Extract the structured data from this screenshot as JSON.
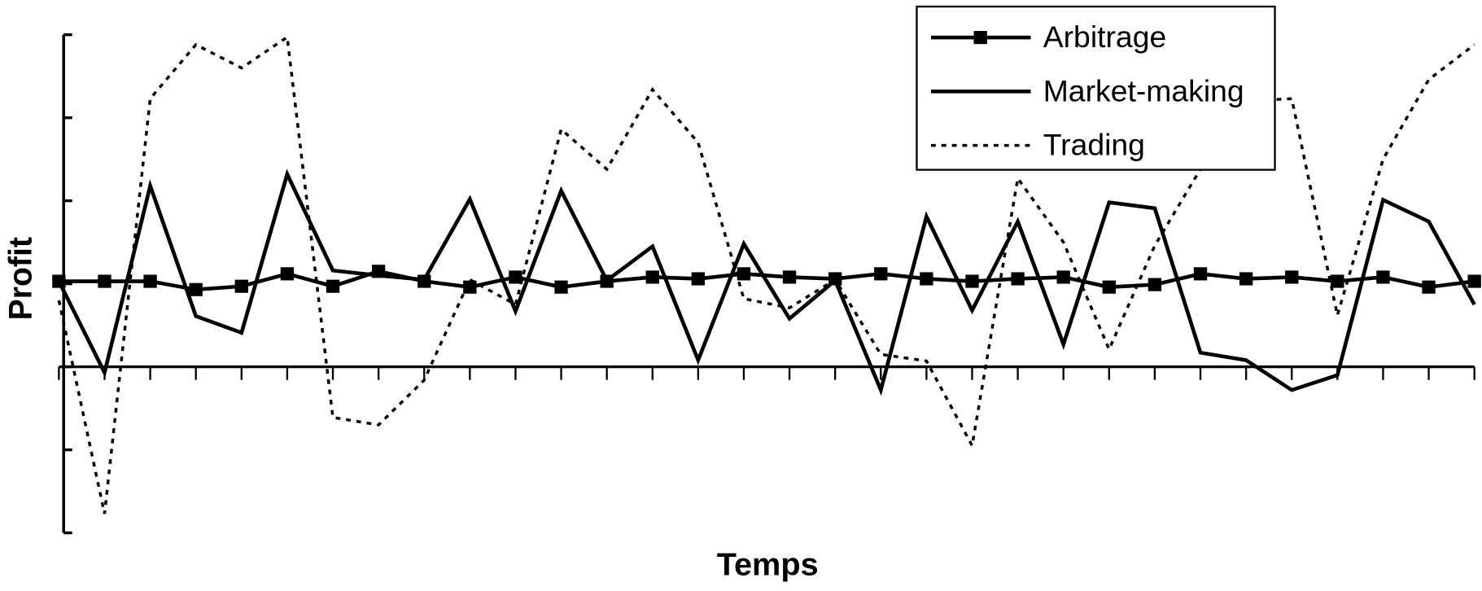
{
  "chart_data": {
    "type": "line",
    "x_label": "Temps",
    "y_label": "Profit",
    "categories": [
      null,
      null,
      null,
      null,
      null,
      null,
      null,
      null,
      null,
      null,
      null,
      null,
      null,
      null,
      null,
      null,
      null,
      null,
      null,
      null,
      null,
      null,
      null,
      null,
      null,
      null,
      null,
      null,
      null,
      null,
      null,
      null
    ],
    "ylim": [
      -2,
      4
    ],
    "yticks": [
      -2,
      -1,
      0,
      1,
      2,
      3,
      4
    ],
    "grid": false,
    "legend": "top-right",
    "series": [
      {
        "name": "Arbitrage",
        "color": "#000000",
        "style": "solid",
        "marker": "square",
        "values": [
          1.03,
          1.03,
          1.03,
          0.93,
          0.97,
          1.12,
          0.97,
          1.15,
          1.03,
          0.96,
          1.08,
          0.96,
          1.03,
          1.08,
          1.06,
          1.12,
          1.08,
          1.06,
          1.12,
          1.06,
          1.03,
          1.06,
          1.08,
          0.96,
          0.99,
          1.12,
          1.06,
          1.08,
          1.03,
          1.08,
          0.96,
          1.03
        ]
      },
      {
        "name": "Market-making",
        "color": "#000000",
        "style": "solid",
        "marker": null,
        "values": [
          1.03,
          -0.07,
          2.18,
          0.61,
          0.41,
          2.32,
          1.16,
          1.1,
          1.05,
          2.02,
          0.67,
          2.12,
          1.04,
          1.45,
          0.08,
          1.48,
          0.58,
          1.04,
          -0.28,
          1.81,
          0.68,
          1.75,
          0.27,
          1.98,
          1.91,
          0.17,
          0.08,
          -0.28,
          -0.1,
          2.01,
          1.75,
          0.75
        ]
      },
      {
        "name": "Trading",
        "color": "#000000",
        "style": "dotted",
        "marker": null,
        "values": [
          0.8,
          -1.77,
          3.23,
          3.88,
          3.6,
          3.97,
          -0.61,
          -0.7,
          -0.16,
          1.05,
          0.75,
          2.86,
          2.38,
          3.34,
          2.7,
          0.82,
          0.71,
          1.05,
          0.15,
          0.07,
          -0.95,
          2.27,
          1.5,
          0.21,
          1.46,
          2.38,
          3.2,
          3.23,
          0.62,
          2.5,
          3.46,
          3.88
        ]
      }
    ]
  }
}
